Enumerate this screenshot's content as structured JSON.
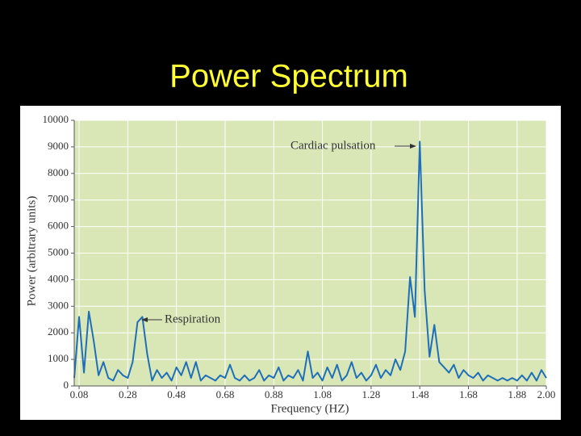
{
  "chart_data": {
    "type": "line",
    "title": "Power Spectrum",
    "x_label": "Frequency (HZ)",
    "y_label": "Power (arbitrary units)",
    "annotations": [
      "Cardiac pulsation",
      "Respiration"
    ],
    "color": "#1f6fb8",
    "grid": true,
    "xlim": [
      0.06,
      2.0
    ],
    "ylim": [
      0,
      10000
    ],
    "xticks": [
      0.08,
      0.28,
      0.48,
      0.68,
      0.88,
      1.08,
      1.28,
      1.48,
      1.68,
      1.88,
      {
        "value": 2,
        "label": "2.00"
      }
    ],
    "yticks": [
      0,
      1000,
      2000,
      3000,
      4000,
      5000,
      6000,
      7000,
      8000,
      9000,
      10000
    ],
    "x": [
      0.06,
      0.08,
      0.1,
      0.12,
      0.14,
      0.16,
      0.18,
      0.2,
      0.22,
      0.24,
      0.26,
      0.28,
      0.3,
      0.32,
      0.34,
      0.36,
      0.38,
      0.4,
      0.42,
      0.44,
      0.46,
      0.48,
      0.5,
      0.52,
      0.54,
      0.56,
      0.58,
      0.6,
      0.62,
      0.64,
      0.66,
      0.68,
      0.7,
      0.72,
      0.74,
      0.76,
      0.78,
      0.8,
      0.82,
      0.84,
      0.86,
      0.88,
      0.9,
      0.92,
      0.94,
      0.96,
      0.98,
      1.0,
      1.02,
      1.04,
      1.06,
      1.08,
      1.1,
      1.12,
      1.14,
      1.16,
      1.18,
      1.2,
      1.22,
      1.24,
      1.26,
      1.28,
      1.3,
      1.32,
      1.34,
      1.36,
      1.38,
      1.4,
      1.42,
      1.44,
      1.46,
      1.48,
      1.5,
      1.52,
      1.54,
      1.56,
      1.58,
      1.6,
      1.62,
      1.64,
      1.66,
      1.68,
      1.7,
      1.72,
      1.74,
      1.76,
      1.78,
      1.8,
      1.82,
      1.84,
      1.86,
      1.88,
      1.9,
      1.92,
      1.94,
      1.96,
      1.98,
      2.0
    ],
    "values": [
      300,
      2600,
      500,
      2800,
      1700,
      400,
      900,
      300,
      200,
      600,
      400,
      300,
      900,
      2400,
      2600,
      1200,
      200,
      600,
      300,
      500,
      200,
      700,
      400,
      900,
      300,
      900,
      200,
      400,
      300,
      200,
      400,
      300,
      800,
      300,
      200,
      400,
      200,
      300,
      600,
      200,
      400,
      300,
      700,
      200,
      400,
      300,
      600,
      200,
      1300,
      300,
      500,
      200,
      700,
      300,
      800,
      200,
      400,
      900,
      300,
      500,
      200,
      400,
      800,
      300,
      600,
      400,
      1000,
      600,
      1300,
      4100,
      2600,
      9200,
      3600,
      1100,
      2300,
      900,
      700,
      500,
      800,
      300,
      600,
      400,
      300,
      500,
      200,
      400,
      300,
      200,
      300,
      200,
      300,
      200,
      400,
      200,
      500,
      200,
      600,
      300
    ]
  }
}
